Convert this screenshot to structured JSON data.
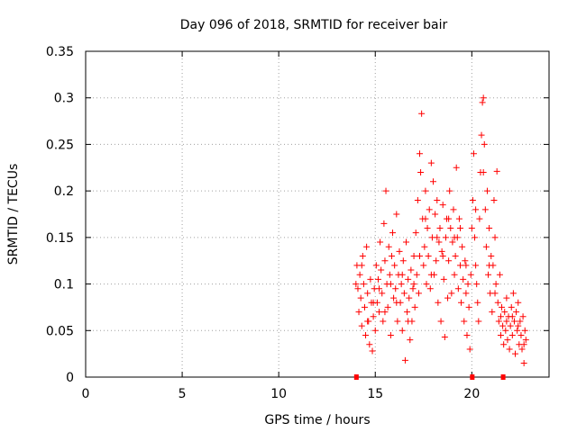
{
  "chart_data": {
    "type": "scatter",
    "title": "Day 096 of 2018, SRMTID for receiver bair",
    "xlabel": "GPS time / hours",
    "ylabel": "SRMTID / TECUs",
    "xlim": [
      0,
      24
    ],
    "ylim": [
      0,
      0.35
    ],
    "xticks": [
      0,
      5,
      10,
      15,
      20
    ],
    "yticks": [
      0,
      0.05,
      0.1,
      0.15,
      0.2,
      0.25,
      0.3,
      0.35
    ],
    "ytick_labels": [
      "0",
      "0.05",
      "0.1",
      "0.15",
      "0.2",
      "0.25",
      "0.3",
      "0.35"
    ],
    "grid": true,
    "marker": "+",
    "color": "#ff0000",
    "axis_markers_x": [
      14.0,
      20.0,
      21.6
    ],
    "series": [
      {
        "points": [
          [
            14.05,
            0.12
          ],
          [
            14.1,
            0.095
          ],
          [
            14.15,
            0.07
          ],
          [
            14.2,
            0.11
          ],
          [
            14.25,
            0.085
          ],
          [
            14.3,
            0.055
          ],
          [
            14.35,
            0.13
          ],
          [
            14.4,
            0.1
          ],
          [
            14.45,
            0.075
          ],
          [
            14.5,
            0.045
          ],
          [
            14.55,
            0.14
          ],
          [
            14.6,
            0.09
          ],
          [
            14.65,
            0.06
          ],
          [
            14.7,
            0.035
          ],
          [
            14.75,
            0.105
          ],
          [
            14.8,
            0.08
          ],
          [
            14.85,
            0.028
          ],
          [
            14.9,
            0.065
          ],
          [
            14.95,
            0.095
          ],
          [
            15.0,
            0.05
          ],
          [
            15.05,
            0.12
          ],
          [
            15.1,
            0.08
          ],
          [
            15.15,
            0.105
          ],
          [
            15.2,
            0.07
          ],
          [
            15.25,
            0.145
          ],
          [
            15.3,
            0.115
          ],
          [
            15.35,
            0.09
          ],
          [
            15.4,
            0.06
          ],
          [
            15.45,
            0.165
          ],
          [
            15.5,
            0.125
          ],
          [
            15.55,
            0.2
          ],
          [
            15.6,
            0.1
          ],
          [
            15.65,
            0.075
          ],
          [
            15.7,
            0.14
          ],
          [
            15.75,
            0.11
          ],
          [
            15.8,
            0.045
          ],
          [
            15.85,
            0.13
          ],
          [
            15.9,
            0.155
          ],
          [
            15.95,
            0.085
          ],
          [
            16.0,
            0.12
          ],
          [
            16.05,
            0.095
          ],
          [
            16.1,
            0.175
          ],
          [
            16.15,
            0.06
          ],
          [
            16.2,
            0.11
          ],
          [
            16.25,
            0.135
          ],
          [
            16.3,
            0.08
          ],
          [
            16.35,
            0.1
          ],
          [
            16.4,
            0.05
          ],
          [
            16.45,
            0.125
          ],
          [
            16.5,
            0.09
          ],
          [
            16.55,
            0.018
          ],
          [
            16.6,
            0.145
          ],
          [
            16.65,
            0.07
          ],
          [
            16.7,
            0.105
          ],
          [
            16.75,
            0.085
          ],
          [
            16.8,
            0.04
          ],
          [
            16.85,
            0.115
          ],
          [
            16.9,
            0.06
          ],
          [
            16.95,
            0.095
          ],
          [
            17.0,
            0.13
          ],
          [
            17.05,
            0.075
          ],
          [
            17.1,
            0.155
          ],
          [
            17.15,
            0.11
          ],
          [
            17.2,
            0.19
          ],
          [
            17.25,
            0.09
          ],
          [
            17.3,
            0.24
          ],
          [
            17.35,
            0.22
          ],
          [
            17.4,
            0.283
          ],
          [
            17.45,
            0.17
          ],
          [
            17.5,
            0.12
          ],
          [
            17.55,
            0.14
          ],
          [
            17.6,
            0.2
          ],
          [
            17.65,
            0.1
          ],
          [
            17.7,
            0.16
          ],
          [
            17.75,
            0.13
          ],
          [
            17.8,
            0.18
          ],
          [
            17.85,
            0.095
          ],
          [
            17.9,
            0.23
          ],
          [
            17.95,
            0.15
          ],
          [
            18.0,
            0.21
          ],
          [
            18.05,
            0.11
          ],
          [
            18.1,
            0.175
          ],
          [
            18.15,
            0.125
          ],
          [
            18.2,
            0.19
          ],
          [
            18.25,
            0.08
          ],
          [
            18.3,
            0.145
          ],
          [
            18.35,
            0.16
          ],
          [
            18.4,
            0.06
          ],
          [
            18.45,
            0.135
          ],
          [
            18.5,
            0.185
          ],
          [
            18.55,
            0.105
          ],
          [
            18.6,
            0.043
          ],
          [
            18.65,
            0.15
          ],
          [
            18.7,
            0.17
          ],
          [
            18.75,
            0.085
          ],
          [
            18.8,
            0.125
          ],
          [
            18.85,
            0.2
          ],
          [
            18.9,
            0.16
          ],
          [
            18.95,
            0.09
          ],
          [
            19.0,
            0.145
          ],
          [
            19.05,
            0.18
          ],
          [
            19.1,
            0.11
          ],
          [
            19.15,
            0.13
          ],
          [
            19.2,
            0.225
          ],
          [
            19.25,
            0.15
          ],
          [
            19.3,
            0.095
          ],
          [
            19.35,
            0.17
          ],
          [
            19.4,
            0.12
          ],
          [
            19.45,
            0.08
          ],
          [
            19.5,
            0.14
          ],
          [
            19.55,
            0.105
          ],
          [
            19.6,
            0.06
          ],
          [
            19.65,
            0.125
          ],
          [
            19.7,
            0.09
          ],
          [
            19.75,
            0.045
          ],
          [
            19.8,
            0.1
          ],
          [
            19.85,
            0.075
          ],
          [
            19.9,
            0.03
          ],
          [
            19.95,
            0.11
          ],
          [
            20.0,
            0.16
          ],
          [
            20.05,
            0.19
          ],
          [
            20.1,
            0.24
          ],
          [
            20.15,
            0.15
          ],
          [
            20.2,
            0.12
          ],
          [
            20.25,
            0.1
          ],
          [
            20.3,
            0.08
          ],
          [
            20.35,
            0.06
          ],
          [
            20.4,
            0.17
          ],
          [
            20.45,
            0.22
          ],
          [
            20.5,
            0.26
          ],
          [
            20.55,
            0.295
          ],
          [
            20.6,
            0.3
          ],
          [
            20.65,
            0.25
          ],
          [
            20.7,
            0.18
          ],
          [
            20.75,
            0.14
          ],
          [
            20.8,
            0.2
          ],
          [
            20.85,
            0.11
          ],
          [
            20.9,
            0.16
          ],
          [
            20.95,
            0.09
          ],
          [
            21.0,
            0.13
          ],
          [
            21.05,
            0.07
          ],
          [
            21.1,
            0.12
          ],
          [
            21.15,
            0.19
          ],
          [
            21.2,
            0.15
          ],
          [
            21.25,
            0.1
          ],
          [
            21.3,
            0.221
          ],
          [
            21.35,
            0.08
          ],
          [
            21.4,
            0.06
          ],
          [
            21.45,
            0.11
          ],
          [
            21.5,
            0.045
          ],
          [
            21.55,
            0.075
          ],
          [
            21.6,
            0.055
          ],
          [
            21.65,
            0.035
          ],
          [
            21.7,
            0.07
          ],
          [
            21.75,
            0.05
          ],
          [
            21.8,
            0.085
          ],
          [
            21.85,
            0.04
          ],
          [
            21.9,
            0.065
          ],
          [
            21.95,
            0.03
          ],
          [
            22.0,
            0.055
          ],
          [
            22.05,
            0.075
          ],
          [
            22.1,
            0.045
          ],
          [
            22.15,
            0.09
          ],
          [
            22.2,
            0.06
          ],
          [
            22.25,
            0.025
          ],
          [
            22.3,
            0.07
          ],
          [
            22.35,
            0.05
          ],
          [
            22.4,
            0.08
          ],
          [
            22.45,
            0.035
          ],
          [
            22.5,
            0.06
          ],
          [
            22.55,
            0.045
          ],
          [
            22.6,
            0.03
          ],
          [
            22.65,
            0.065
          ],
          [
            22.7,
            0.015
          ],
          [
            22.75,
            0.05
          ],
          [
            22.8,
            0.04
          ],
          [
            14.0,
            0.1
          ],
          [
            14.3,
            0.12
          ],
          [
            14.6,
            0.06
          ],
          [
            14.9,
            0.08
          ],
          [
            15.2,
            0.095
          ],
          [
            15.5,
            0.07
          ],
          [
            15.8,
            0.1
          ],
          [
            16.1,
            0.08
          ],
          [
            16.4,
            0.11
          ],
          [
            16.7,
            0.06
          ],
          [
            17.0,
            0.1
          ],
          [
            17.3,
            0.13
          ],
          [
            17.6,
            0.17
          ],
          [
            17.9,
            0.11
          ],
          [
            18.2,
            0.15
          ],
          [
            18.5,
            0.13
          ],
          [
            18.8,
            0.17
          ],
          [
            19.1,
            0.15
          ],
          [
            19.4,
            0.16
          ],
          [
            19.7,
            0.12
          ],
          [
            20.2,
            0.18
          ],
          [
            20.6,
            0.22
          ],
          [
            20.9,
            0.12
          ],
          [
            21.2,
            0.09
          ],
          [
            21.5,
            0.065
          ],
          [
            21.8,
            0.06
          ],
          [
            22.1,
            0.065
          ],
          [
            22.4,
            0.055
          ],
          [
            22.7,
            0.035
          ]
        ]
      }
    ]
  }
}
